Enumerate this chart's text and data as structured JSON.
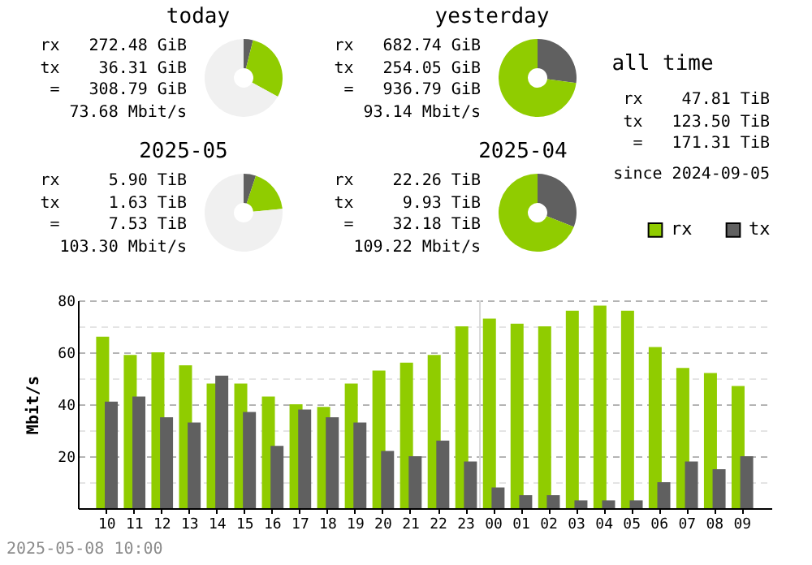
{
  "chart_data": [
    {
      "type": "donut",
      "title": "today",
      "categories": [
        null,
        null,
        null
      ],
      "values": [
        3.9,
        29.1,
        67.0
      ],
      "colors": [
        "#606060",
        "#90cc00",
        "#f0f0f0"
      ],
      "annotations": [
        "rx   272.48 GiB",
        "tx    36.31 GiB",
        " =   308.79 GiB",
        "73.68 Mbit/s"
      ]
    },
    {
      "type": "donut",
      "title": "yesterday",
      "categories": [
        null,
        null
      ],
      "values": [
        27.1,
        72.9
      ],
      "colors": [
        "#606060",
        "#90cc00"
      ],
      "annotations": [
        "rx   682.74 GiB",
        "tx   254.05 GiB",
        " =   936.79 GiB",
        "93.14 Mbit/s"
      ]
    },
    {
      "type": "donut",
      "title": "2025-05",
      "categories": [
        null,
        null,
        null
      ],
      "values": [
        5.1,
        18.3,
        76.6
      ],
      "colors": [
        "#606060",
        "#90cc00",
        "#f0f0f0"
      ],
      "annotations": [
        "rx     5.90 TiB",
        "tx     1.63 TiB",
        " =     7.53 TiB",
        "103.30 Mbit/s"
      ]
    },
    {
      "type": "donut",
      "title": "2025-04",
      "categories": [
        null,
        null
      ],
      "values": [
        30.9,
        69.1
      ],
      "colors": [
        "#606060",
        "#90cc00"
      ],
      "annotations": [
        "rx    22.26 TiB",
        "tx     9.93 TiB",
        " =    32.18 TiB",
        "109.22 Mbit/s"
      ]
    },
    {
      "type": "other",
      "title": "all time",
      "annotations": [
        "rx    47.81 TiB",
        "tx   123.50 TiB",
        " =   171.31 TiB",
        "since 2024-09-05"
      ]
    },
    {
      "type": "bar",
      "ylabel": "Mbit/s",
      "categories": [
        "10",
        "11",
        "12",
        "13",
        "14",
        "15",
        "16",
        "17",
        "18",
        "19",
        "20",
        "21",
        "22",
        "23",
        "00",
        "01",
        "02",
        "03",
        "04",
        "05",
        "06",
        "07",
        "08",
        "09"
      ],
      "series": [
        {
          "name": "rx",
          "color": "#90cc00",
          "values": [
            66,
            59,
            60,
            55,
            48,
            48,
            43,
            40,
            39,
            48,
            53,
            56,
            59,
            70,
            73,
            71,
            70,
            76,
            78,
            76,
            62,
            54,
            52,
            47
          ]
        },
        {
          "name": "tx",
          "color": "#606060",
          "values": [
            41,
            43,
            35,
            33,
            51,
            37,
            24,
            38,
            35,
            33,
            22,
            20,
            26,
            18,
            8,
            5,
            5,
            3,
            3,
            3,
            10,
            18,
            15,
            20
          ]
        }
      ],
      "ylim": [
        0,
        80
      ],
      "yticks": [
        {
          "value": 0,
          "label": null
        },
        {
          "value": 10,
          "label": null
        },
        20,
        {
          "value": 30,
          "label": null
        },
        40,
        {
          "value": 50,
          "label": null
        },
        60,
        {
          "value": 70,
          "label": null
        },
        80
      ],
      "grid": "y",
      "legend": "top right",
      "ref_lines": [
        {
          "axis": "x",
          "value": "00",
          "color": "#d8d8d8"
        }
      ],
      "annotations": [
        "2025-05-08 10:00"
      ]
    }
  ]
}
